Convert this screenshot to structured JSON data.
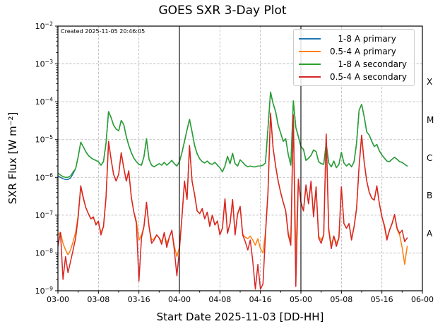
{
  "header": {
    "created_note": "Created 2025-11-05 20:46:05"
  },
  "chart_data": {
    "type": "line",
    "title": "GOES SXR 3-Day Plot",
    "xlabel": "Start Date 2025-11-03 [DD-HH]",
    "ylabel": "SXR Flux [W m⁻²]",
    "x_unit": "hours since 2025-11-03 00:00 UTC",
    "xlim": [
      0,
      72
    ],
    "ylim_log10": [
      -9,
      -2
    ],
    "grid": true,
    "legend_position": "upper right",
    "x_ticks": {
      "hours": [
        0,
        8,
        16,
        24,
        32,
        40,
        48,
        56,
        64,
        72
      ],
      "labels": [
        "03-00",
        "03-08",
        "03-16",
        "04-00",
        "04-08",
        "04-16",
        "05-00",
        "05-08",
        "05-16",
        "06-00"
      ],
      "minor_every_hours": 4
    },
    "y_tick_exponents": [
      -2,
      -3,
      -4,
      -5,
      -6,
      -7,
      -8,
      -9
    ],
    "flare_classes": [
      {
        "label": "X",
        "log_center": -3.5
      },
      {
        "label": "M",
        "log_center": -4.5
      },
      {
        "label": "C",
        "log_center": -5.5
      },
      {
        "label": "B",
        "log_center": -6.5
      },
      {
        "label": "A",
        "log_center": -7.5
      }
    ],
    "day_boundary_lines_hours": [
      24,
      48
    ],
    "hours": [
      0,
      0.5,
      1,
      1.5,
      2,
      2.5,
      3,
      3.5,
      4,
      4.5,
      5,
      5.5,
      6,
      6.5,
      7,
      7.5,
      8,
      8.5,
      9,
      9.5,
      10,
      10.5,
      11,
      11.5,
      12,
      12.5,
      13,
      13.5,
      14,
      14.5,
      15,
      15.5,
      16,
      16.5,
      17,
      17.5,
      18,
      18.5,
      19,
      19.5,
      20,
      20.5,
      21,
      21.5,
      22,
      22.5,
      23,
      23.5,
      24,
      24.5,
      25,
      25.5,
      26,
      26.5,
      27,
      27.5,
      28,
      28.5,
      29,
      29.5,
      30,
      30.5,
      31,
      31.5,
      32,
      32.5,
      33,
      33.5,
      34,
      34.5,
      35,
      35.5,
      36,
      36.5,
      37,
      37.5,
      38,
      38.5,
      39,
      39.5,
      40,
      40.5,
      41,
      41.5,
      42,
      42.5,
      43,
      43.5,
      44,
      44.5,
      45,
      45.5,
      46,
      46.5,
      47,
      47.5,
      48,
      48.5,
      49,
      49.5,
      50,
      50.5,
      51,
      51.5,
      52,
      52.5,
      53,
      53.5,
      54,
      54.5,
      55,
      55.5,
      56,
      56.5,
      57,
      57.5,
      58,
      58.5,
      59,
      59.5,
      60,
      60.5,
      61,
      61.5,
      62,
      62.5,
      63,
      63.5,
      64,
      64.5,
      65,
      65.5,
      66,
      66.5,
      67,
      67.5,
      68,
      68.5,
      69
    ],
    "series": [
      {
        "name": "1-8 A primary",
        "color": "#1f77b4",
        "values": [
          1.1e-06,
          1e-06,
          9.2e-07,
          8.8e-07,
          8.8e-07,
          9.6e-07,
          1.25e-06,
          1.7e-06,
          3.5e-06,
          8.5e-06,
          6.5e-06,
          4.8e-06,
          3.8e-06,
          3.3e-06,
          3e-06,
          2.8e-06,
          2.6e-06,
          2.1e-06,
          2.6e-06,
          8e-06,
          5.5e-05,
          3.8e-05,
          2.4e-05,
          1.9e-05,
          1.7e-05,
          3.2e-05,
          2.5e-05,
          1.2e-05,
          7e-06,
          4.5e-06,
          3.2e-06,
          2.6e-06,
          2.2e-06,
          2.1e-06,
          3.5e-06,
          1.05e-05,
          3e-06,
          2.1e-06,
          1.9e-06,
          2.1e-06,
          2.3e-06,
          2.1e-06,
          2.5e-06,
          2.1e-06,
          2.4e-06,
          2.8e-06,
          2.3e-06,
          2e-06,
          2.6e-06,
          4.5e-06,
          9e-06,
          1.8e-05,
          3.4e-05,
          1.6e-05,
          7e-06,
          4.2e-06,
          3.1e-06,
          2.6e-06,
          2.4e-06,
          2.7e-06,
          2.3e-06,
          2.2e-06,
          2.5e-06,
          2.1e-06,
          1.8e-06,
          1.4e-06,
          2e-06,
          3.6e-06,
          2.3e-06,
          4.3e-06,
          2.3e-06,
          2e-06,
          2.9e-06,
          2.5e-06,
          2.1e-06,
          1.9e-06,
          2e-06,
          1.9e-06,
          1.9e-06,
          2e-06,
          2e-06,
          2.1e-06,
          2.4e-06,
          2e-05,
          0.00018,
          9e-05,
          5.5e-05,
          2.4e-05,
          1.5e-05,
          9e-06,
          1.05e-05,
          4e-06,
          2.1e-06,
          0.000105,
          2.1e-05,
          1.2e-05,
          6.5e-06,
          5.5e-06,
          2.8e-06,
          3.2e-06,
          3.8e-06,
          5.3e-06,
          4.8e-06,
          2.6e-06,
          2.3e-06,
          2.2e-06,
          8e-06,
          2.4e-06,
          1.9e-06,
          2.7e-06,
          1.8e-06,
          2.2e-06,
          4.6e-06,
          2.4e-06,
          2e-06,
          2.3e-06,
          1.9e-06,
          2.6e-06,
          8e-06,
          6e-05,
          8.5e-05,
          4e-05,
          1.6e-05,
          1.3e-05,
          9e-06,
          6.5e-06,
          7.4e-06,
          5e-06,
          3.9e-06,
          3.2e-06,
          2.7e-06,
          2.6e-06,
          3e-06,
          3.4e-06,
          3e-06,
          2.6e-06,
          2.5e-06,
          2.2e-06,
          2e-06
        ]
      },
      {
        "name": "0.5-4 A primary",
        "color": "#ff7f0e",
        "values": [
          3e-08,
          3.5e-08,
          1.8e-08,
          1.2e-08,
          9e-09,
          1.2e-08,
          2e-08,
          3.5e-08,
          1e-07,
          5.5e-07,
          2.8e-07,
          1.6e-07,
          1.1e-07,
          8e-08,
          8.5e-08,
          6e-08,
          6.5e-08,
          3.5e-08,
          5e-08,
          2.8e-07,
          8.5e-06,
          3e-06,
          1.2e-06,
          8e-07,
          1.2e-06,
          4.3e-06,
          1.8e-06,
          8e-07,
          1.4e-06,
          3e-07,
          1.2e-07,
          7e-08,
          2.2e-08,
          3e-08,
          5e-08,
          2e-07,
          5e-08,
          2.2e-08,
          2.4e-08,
          3e-08,
          2.5e-08,
          2e-08,
          3.2e-08,
          1.8e-08,
          2.6e-08,
          3.8e-08,
          1.5e-08,
          8e-09,
          1.4e-08,
          9e-08,
          7.5e-07,
          2.6e-07,
          6.8e-06,
          8e-07,
          3.5e-07,
          1.3e-07,
          1.1e-07,
          1.4e-07,
          8e-08,
          1.2e-07,
          5.5e-08,
          1e-07,
          5.5e-08,
          7e-08,
          3.2e-08,
          4.5e-08,
          2.5e-07,
          3.5e-08,
          6e-08,
          2.5e-07,
          3.2e-08,
          1.05e-07,
          1.6e-07,
          3.2e-08,
          2.6e-08,
          2.4e-08,
          2.8e-08,
          2.2e-08,
          1.6e-08,
          2.4e-08,
          1.3e-08,
          1e-08,
          3.5e-08,
          4e-07,
          4.8e-05,
          6e-06,
          2e-06,
          8e-07,
          4e-07,
          2.2e-07,
          1.3e-07,
          3.5e-08,
          2e-08,
          4.4e-05,
          9e-09,
          8.5e-07,
          2.2e-07,
          1.3e-07,
          6e-07,
          2e-07,
          7.5e-07,
          9.5e-08,
          5.4e-07,
          2.8e-08,
          2.2e-08,
          3e-08,
          1.35e-05,
          4.5e-08,
          1.6e-08,
          2.8e-08,
          1.8e-08,
          2.5e-08,
          5.4e-07,
          6e-08,
          4.5e-08,
          5.8e-08,
          2.4e-08,
          5e-08,
          1.5e-07,
          2e-06,
          1.3e-05,
          2.5e-06,
          8e-07,
          4e-07,
          2.8e-07,
          2.5e-07,
          5.8e-07,
          2e-07,
          9e-08,
          5.5e-08,
          2.5e-08,
          4e-08,
          5.8e-08,
          1e-07,
          4.2e-08,
          3e-08,
          1.4e-08,
          5e-09,
          1.5e-08
        ]
      },
      {
        "name": "1-8 A secondary",
        "color": "#2ca02c",
        "values": [
          1.3e-06,
          1.15e-06,
          1.05e-06,
          1e-06,
          1e-06,
          1.1e-06,
          1.4e-06,
          1.7e-06,
          3.5e-06,
          8.5e-06,
          6.5e-06,
          4.8e-06,
          3.8e-06,
          3.3e-06,
          3e-06,
          2.8e-06,
          2.6e-06,
          2.1e-06,
          2.6e-06,
          8e-06,
          5.5e-05,
          3.8e-05,
          2.4e-05,
          1.9e-05,
          1.7e-05,
          3.2e-05,
          2.5e-05,
          1.2e-05,
          7e-06,
          4.5e-06,
          3.2e-06,
          2.6e-06,
          2.2e-06,
          2.1e-06,
          3.5e-06,
          1.05e-05,
          3e-06,
          2.1e-06,
          1.9e-06,
          2.1e-06,
          2.3e-06,
          2.1e-06,
          2.5e-06,
          2.1e-06,
          2.4e-06,
          2.8e-06,
          2.3e-06,
          2e-06,
          2.6e-06,
          4.5e-06,
          9e-06,
          1.8e-05,
          3.4e-05,
          1.6e-05,
          7e-06,
          4.2e-06,
          3.1e-06,
          2.6e-06,
          2.4e-06,
          2.7e-06,
          2.3e-06,
          2.2e-06,
          2.5e-06,
          2.1e-06,
          1.8e-06,
          1.4e-06,
          2e-06,
          3.6e-06,
          2.3e-06,
          4.3e-06,
          2.3e-06,
          2e-06,
          2.9e-06,
          2.5e-06,
          2.1e-06,
          1.9e-06,
          2e-06,
          1.9e-06,
          1.9e-06,
          2e-06,
          2e-06,
          2.1e-06,
          2.4e-06,
          2e-05,
          0.00018,
          9e-05,
          5.5e-05,
          2.4e-05,
          1.5e-05,
          9e-06,
          1.05e-05,
          4e-06,
          2.1e-06,
          0.000105,
          2.1e-05,
          1.2e-05,
          6.5e-06,
          5.5e-06,
          2.8e-06,
          3.2e-06,
          3.8e-06,
          5.3e-06,
          4.8e-06,
          2.6e-06,
          2.3e-06,
          2.2e-06,
          8e-06,
          2.4e-06,
          1.9e-06,
          2.7e-06,
          1.8e-06,
          2.2e-06,
          4.6e-06,
          2.4e-06,
          2e-06,
          2.3e-06,
          1.9e-06,
          2.6e-06,
          8e-06,
          6e-05,
          8.5e-05,
          4e-05,
          1.6e-05,
          1.3e-05,
          9e-06,
          6.5e-06,
          7.4e-06,
          5e-06,
          3.9e-06,
          3.2e-06,
          2.7e-06,
          2.6e-06,
          3e-06,
          3.4e-06,
          3e-06,
          2.6e-06,
          2.5e-06,
          2.2e-06,
          2e-06
        ]
      },
      {
        "name": "0.5-4 A secondary",
        "color": "#d62728",
        "values": [
          1.5e-08,
          3.5e-08,
          2e-09,
          8e-09,
          3e-09,
          6e-09,
          1.2e-08,
          2.5e-08,
          9e-08,
          6e-07,
          3e-07,
          1.6e-07,
          1.1e-07,
          8e-08,
          9e-08,
          5.5e-08,
          7e-08,
          3e-08,
          5e-08,
          3e-07,
          9e-06,
          3e-06,
          1.2e-06,
          8e-07,
          1.2e-06,
          4.5e-06,
          1.8e-06,
          8e-07,
          1.5e-06,
          3e-07,
          1.2e-07,
          6e-08,
          1.8e-09,
          2.5e-08,
          5e-08,
          2.2e-07,
          5e-08,
          1.8e-08,
          2.2e-08,
          3e-08,
          2.5e-08,
          1.7e-08,
          3.5e-08,
          1.4e-08,
          2.6e-08,
          4e-08,
          1.2e-08,
          2.5e-09,
          1.2e-08,
          9e-08,
          8e-07,
          2.6e-07,
          7e-06,
          8e-07,
          3.5e-07,
          1.3e-07,
          1.1e-07,
          1.5e-07,
          8e-08,
          1.2e-07,
          5e-08,
          1e-07,
          5.5e-08,
          7e-08,
          3e-08,
          4.5e-08,
          2.7e-07,
          3.3e-08,
          6e-08,
          2.6e-07,
          3e-08,
          1.1e-07,
          1.7e-07,
          3e-08,
          2e-08,
          1.2e-08,
          2.2e-08,
          6e-09,
          1.1e-09,
          5e-09,
          1.1e-09,
          1.5e-09,
          3e-08,
          4e-07,
          5e-05,
          6e-06,
          2e-06,
          8e-07,
          4e-07,
          2.2e-07,
          1.3e-07,
          3e-08,
          1.6e-08,
          4.5e-05,
          1.3e-09,
          9e-07,
          2.2e-07,
          1.3e-07,
          6.3e-07,
          2e-07,
          8e-07,
          9e-08,
          5.6e-07,
          2.5e-08,
          1.8e-08,
          3e-08,
          1.4e-05,
          4e-08,
          1.3e-08,
          2.8e-08,
          1.5e-08,
          2.5e-08,
          5.6e-07,
          6e-08,
          4.5e-08,
          6e-08,
          2.2e-08,
          5e-08,
          1.5e-07,
          2e-06,
          1.3e-05,
          2.5e-06,
          8e-07,
          4e-07,
          2.8e-07,
          2.5e-07,
          6e-07,
          2e-07,
          9e-08,
          5e-08,
          2.2e-08,
          4e-08,
          6e-08,
          1.05e-07,
          4.5e-08,
          3.3e-08,
          4e-08,
          2e-08,
          2.5e-08
        ]
      }
    ]
  },
  "style_colors": {
    "grid": "#b0b0b0",
    "axis": "#000000",
    "day_line": "#000000",
    "legend_border": "#cccccc"
  }
}
